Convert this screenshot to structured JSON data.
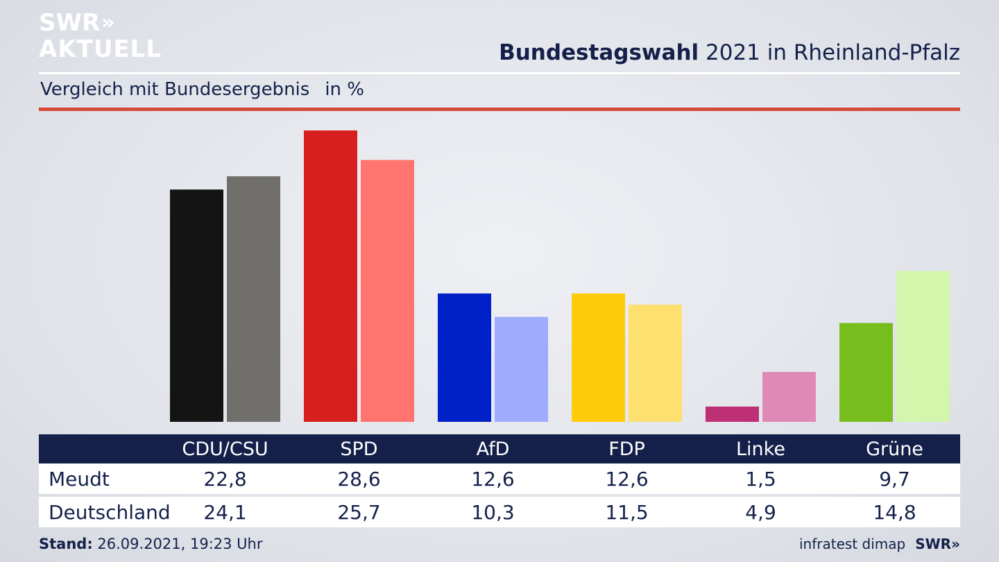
{
  "header": {
    "logo_line1": "SWR",
    "logo_arrows": "»",
    "logo_line2": "AKTUELL",
    "title_bold": "Bundestagswahl",
    "title_rest": " 2021 in Rheinland-Pfalz",
    "subtitle": "Vergleich mit Bundesergebnis",
    "unit": "in %"
  },
  "colors": {
    "header_dark": "#14204a",
    "accent_red_rule": "#d6493a",
    "table_header_bg": "#14204a"
  },
  "chart_data": {
    "type": "bar",
    "categories": [
      "CDU/CSU",
      "SPD",
      "AfD",
      "FDP",
      "Linke",
      "Grüne"
    ],
    "series": [
      {
        "name": "Meudt",
        "values": [
          22.8,
          28.6,
          12.6,
          12.6,
          1.5,
          9.7
        ],
        "colors": [
          "#141414",
          "#d81f1f",
          "#0020c8",
          "#ffcb0a",
          "#be3075",
          "#78bd1e"
        ]
      },
      {
        "name": "Deutschland",
        "values": [
          24.1,
          25.7,
          10.3,
          11.5,
          4.9,
          14.8
        ],
        "colors": [
          "#716f6c",
          "#ff746f",
          "#9eabfe",
          "#fde070",
          "#df8ab6",
          "#d3f6ac"
        ]
      }
    ],
    "ylim": [
      0,
      28.6
    ],
    "grid": false,
    "legend": "table-below"
  },
  "table": {
    "row_labels": [
      "Meudt",
      "Deutschland"
    ],
    "rows": [
      [
        "22,8",
        "28,6",
        "12,6",
        "12,6",
        "1,5",
        "9,7"
      ],
      [
        "24,1",
        "25,7",
        "10,3",
        "11,5",
        "4,9",
        "14,8"
      ]
    ]
  },
  "footer": {
    "stand_label": "Stand:",
    "stand_value": " 26.09.2021, 19:23 Uhr",
    "source": "infratest dimap",
    "brand": "SWR",
    "brand_arrows": "»"
  }
}
